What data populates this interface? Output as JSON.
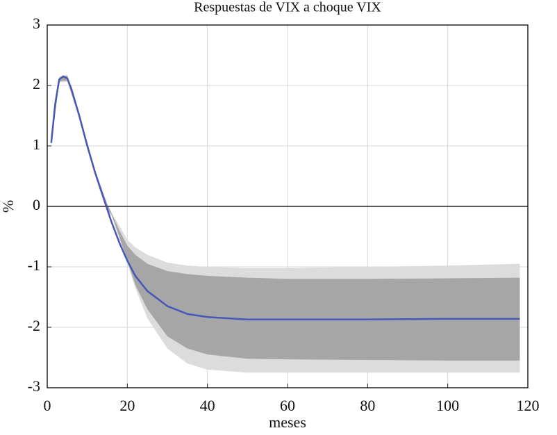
{
  "chart_data": {
    "type": "line",
    "title": "Respuestas de VIX a choque VIX",
    "xlabel": "meses",
    "ylabel": "%",
    "xlim": [
      0,
      120
    ],
    "xticks": [
      0,
      20,
      40,
      60,
      80,
      100,
      120
    ],
    "ylim": [
      -3,
      3
    ],
    "yticks": [
      -3,
      -2,
      -1,
      0,
      1,
      2,
      3
    ],
    "grid": true,
    "bands": [
      {
        "color": "#dcdcdc",
        "x": [
          1,
          3,
          5,
          8,
          12,
          15,
          16,
          18,
          20,
          22,
          25,
          30,
          35,
          40,
          50,
          60,
          80,
          100,
          118
        ],
        "upper": [
          1.1,
          2.15,
          2.18,
          1.55,
          0.6,
          0.05,
          -0.1,
          -0.32,
          -0.55,
          -0.68,
          -0.8,
          -0.93,
          -0.98,
          -1.0,
          -1.02,
          -1.02,
          -1.0,
          -0.98,
          -0.95
        ],
        "lower": [
          1.0,
          2.05,
          2.06,
          1.45,
          0.5,
          -0.1,
          -0.15,
          -0.55,
          -0.95,
          -1.35,
          -1.85,
          -2.35,
          -2.6,
          -2.7,
          -2.75,
          -2.75,
          -2.75,
          -2.75,
          -2.75
        ]
      },
      {
        "color": "#a6a6a6",
        "x": [
          1,
          3,
          5,
          8,
          12,
          15,
          16,
          18,
          20,
          22,
          25,
          30,
          35,
          40,
          50,
          60,
          80,
          100,
          118
        ],
        "upper": [
          1.08,
          2.13,
          2.16,
          1.53,
          0.58,
          0.03,
          -0.1,
          -0.4,
          -0.65,
          -0.8,
          -0.95,
          -1.07,
          -1.12,
          -1.15,
          -1.18,
          -1.2,
          -1.2,
          -1.19,
          -1.18
        ],
        "lower": [
          1.02,
          2.07,
          2.08,
          1.47,
          0.52,
          -0.07,
          -0.12,
          -0.5,
          -0.9,
          -1.3,
          -1.7,
          -2.15,
          -2.35,
          -2.45,
          -2.52,
          -2.53,
          -2.54,
          -2.55,
          -2.55
        ]
      }
    ],
    "series": [
      {
        "name": "VIX",
        "color": "#4657b8",
        "x": [
          1,
          2,
          3,
          4,
          5,
          6,
          8,
          10,
          12,
          14,
          15,
          16,
          18,
          20,
          22,
          25,
          30,
          35,
          40,
          50,
          60,
          80,
          100,
          118
        ],
        "values": [
          1.05,
          1.7,
          2.1,
          2.15,
          2.12,
          1.95,
          1.5,
          1.0,
          0.55,
          0.15,
          -0.05,
          -0.25,
          -0.6,
          -0.9,
          -1.15,
          -1.4,
          -1.65,
          -1.78,
          -1.83,
          -1.87,
          -1.87,
          -1.87,
          -1.86,
          -1.86
        ]
      }
    ]
  }
}
